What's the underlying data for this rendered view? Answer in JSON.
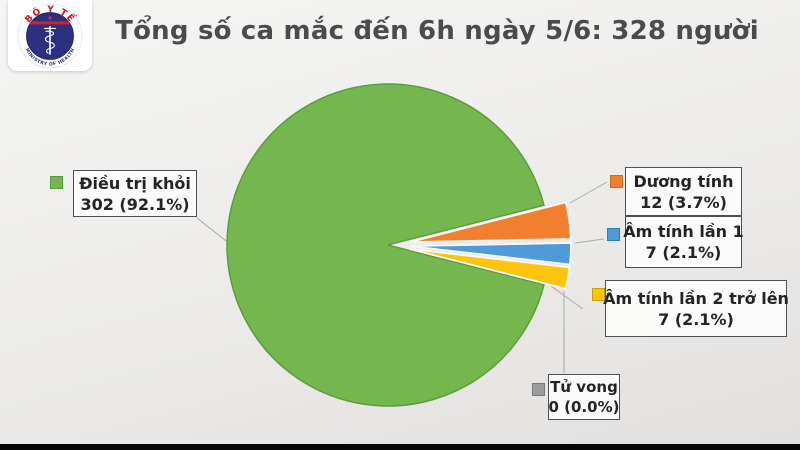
{
  "header": {
    "title": "Tổng số ca mắc đến 6h ngày 5/6: 328 người"
  },
  "logo": {
    "arc_top": "BỘ Y TẾ",
    "arc_bottom": "MINISTRY OF HEALTH"
  },
  "chart_data": {
    "type": "pie",
    "title": "Tổng số ca mắc đến 6h ngày 5/6: 328 người",
    "total": 328,
    "unit": "người",
    "legend_position": "callouts-around-pie",
    "slices": [
      {
        "label": "Điều trị khỏi",
        "value": 302,
        "pct": 92.1,
        "display": "302 (92.1%)",
        "color": "#74b74e",
        "border": "#5a9a3c",
        "callout_side": "left"
      },
      {
        "label": "Dương tính",
        "value": 12,
        "pct": 3.7,
        "display": "12 (3.7%)",
        "color": "#f0802f",
        "border": "#c96a1d",
        "callout_side": "right"
      },
      {
        "label": "Âm tính lần 1",
        "value": 7,
        "pct": 2.1,
        "display": "7 (2.1%)",
        "color": "#4f9ad8",
        "border": "#3279b5",
        "callout_side": "right"
      },
      {
        "label": "Âm tính lần 2 trở lên",
        "value": 7,
        "pct": 2.1,
        "display": "7 (2.1%)",
        "color": "#fdc40c",
        "border": "#cf9c05",
        "callout_side": "right"
      },
      {
        "label": "Tử vong",
        "value": 0,
        "pct": 0.0,
        "display": "0 (0.0%)",
        "color": "#9c9c9c",
        "border": "#7b7b7b",
        "callout_side": "bottom"
      }
    ]
  }
}
